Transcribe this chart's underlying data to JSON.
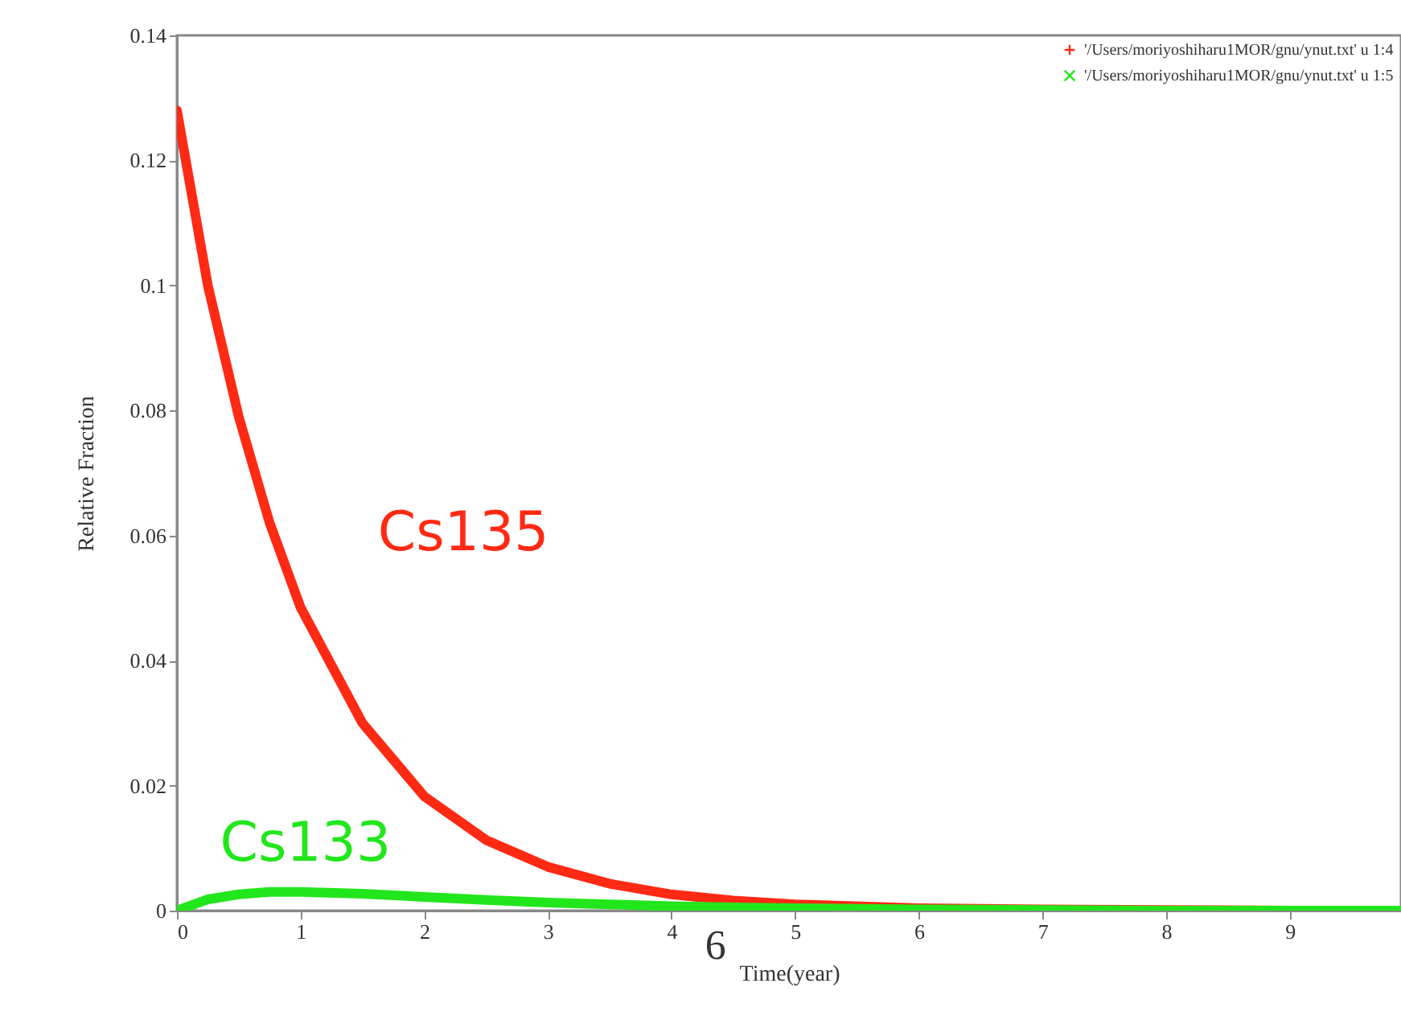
{
  "chart_data": {
    "type": "line",
    "xlabel": "Time(year)",
    "ylabel": "Relative Fraction",
    "x": [
      0,
      0.25,
      0.5,
      0.75,
      1,
      1.5,
      2,
      2.5,
      3,
      3.5,
      4,
      4.5,
      5,
      6,
      7,
      8,
      9,
      9.9
    ],
    "series": [
      {
        "name": "'/Users/moriyoshiharu1MOR/gnu/ynut.txt' u 1:4",
        "color": "#ff2a14",
        "values": [
          0.128,
          0.1,
          0.079,
          0.062,
          0.0485,
          0.03,
          0.0183,
          0.0113,
          0.007,
          0.0043,
          0.0026,
          0.0016,
          0.001,
          0.0004,
          0.0002,
          0.0001,
          0,
          0
        ]
      },
      {
        "name": "'/Users/moriyoshiharu1MOR/gnu/ynut.txt' u 1:5",
        "color": "#22e61c",
        "values": [
          0,
          0.0018,
          0.0026,
          0.003,
          0.003,
          0.0027,
          0.0022,
          0.0017,
          0.0013,
          0.001,
          0.0007,
          0.0005,
          0.0004,
          0.0002,
          0.0001,
          0,
          0,
          0
        ]
      }
    ],
    "xlim": [
      0,
      9.9
    ],
    "xticks": [
      0,
      1,
      2,
      3,
      4,
      5,
      6,
      7,
      8,
      9
    ],
    "ylim": [
      0,
      0.14
    ],
    "yticks": [
      0,
      0.02,
      0.04,
      0.06,
      0.08,
      0.1,
      0.12,
      0.14
    ],
    "legend": "top right",
    "annotations": [
      "Cs135",
      "Cs133",
      "6"
    ]
  }
}
